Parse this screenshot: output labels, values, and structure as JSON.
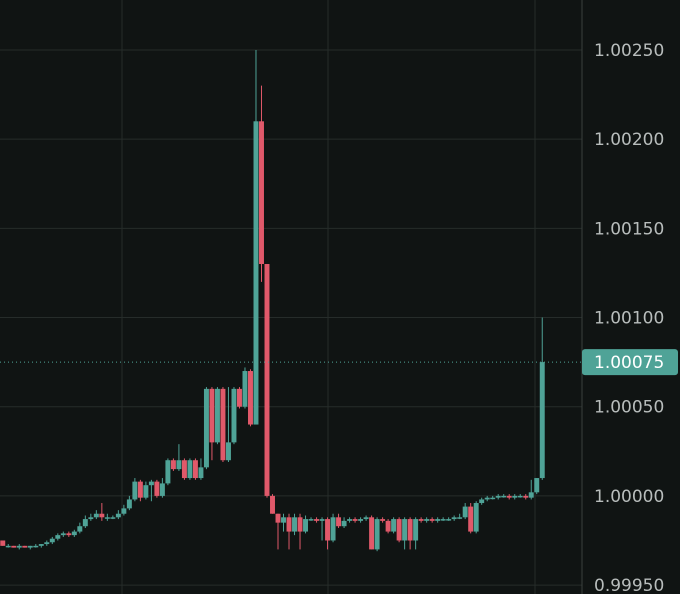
{
  "chart_data": {
    "type": "candlestick",
    "y_axis_position": "right",
    "ylim": [
      0.99945,
      1.00278
    ],
    "y_ticks": [
      "1.00250",
      "1.00200",
      "1.00150",
      "1.00100",
      "1.00050",
      "1.00000",
      "0.99950"
    ],
    "y_tick_values": [
      1.0025,
      1.002,
      1.0015,
      1.001,
      1.0005,
      1.0,
      0.9995
    ],
    "current_price": 1.00075,
    "current_price_label": "1.00075",
    "grid": true,
    "colors": {
      "up": "#4fa397",
      "down": "#e0596a",
      "grid": "#262c2a",
      "axis": "#3a403e",
      "label": "#b8bdbc",
      "badge": "#4fa397",
      "background": "#101413"
    },
    "candles": [
      [
        0.99975,
        0.99972,
        0.99975,
        0.99972
      ],
      [
        0.99972,
        0.99972,
        0.99973,
        0.99971
      ],
      [
        0.99972,
        0.99971,
        0.99972,
        0.99971
      ],
      [
        0.99971,
        0.99972,
        0.99973,
        0.9997
      ],
      [
        0.99972,
        0.99971,
        0.99972,
        0.99971
      ],
      [
        0.99971,
        0.99972,
        0.99972,
        0.9997
      ],
      [
        0.99972,
        0.99972,
        0.99973,
        0.99971
      ],
      [
        0.99972,
        0.99973,
        0.99973,
        0.99971
      ],
      [
        0.99973,
        0.99974,
        0.99975,
        0.99972
      ],
      [
        0.99974,
        0.99976,
        0.99977,
        0.99973
      ],
      [
        0.99976,
        0.99978,
        0.99979,
        0.99975
      ],
      [
        0.99978,
        0.99979,
        0.9998,
        0.99977
      ],
      [
        0.99979,
        0.99978,
        0.9998,
        0.99977
      ],
      [
        0.99978,
        0.9998,
        0.99981,
        0.99977
      ],
      [
        0.9998,
        0.99983,
        0.99985,
        0.99979
      ],
      [
        0.99983,
        0.99987,
        0.99989,
        0.99982
      ],
      [
        0.99987,
        0.99988,
        0.9999,
        0.99986
      ],
      [
        0.99988,
        0.9999,
        0.99992,
        0.99987
      ],
      [
        0.9999,
        0.99988,
        0.99996,
        0.99986
      ],
      [
        0.99988,
        0.99988,
        0.9999,
        0.99986
      ],
      [
        0.99988,
        0.99988,
        0.99989,
        0.99987
      ],
      [
        0.99988,
        0.9999,
        0.99992,
        0.99987
      ],
      [
        0.9999,
        0.99993,
        0.99995,
        0.99989
      ],
      [
        0.99993,
        0.99998,
        1.0,
        0.99992
      ],
      [
        0.99998,
        1.00008,
        1.0001,
        0.99997
      ],
      [
        1.00008,
        0.99999,
        1.00009,
        0.99997
      ],
      [
        0.99999,
        1.00006,
        1.00008,
        0.99998
      ],
      [
        1.00006,
        1.00008,
        1.00009,
        0.99997
      ],
      [
        1.00008,
        1.0,
        1.00009,
        0.99999
      ],
      [
        1.0,
        1.00007,
        1.0001,
        0.99999
      ],
      [
        1.00007,
        1.0002,
        1.00021,
        1.00006
      ],
      [
        1.0002,
        1.00015,
        1.00021,
        1.00014
      ],
      [
        1.00015,
        1.0002,
        1.00029,
        1.00014
      ],
      [
        1.0002,
        1.0001,
        1.00021,
        1.00009
      ],
      [
        1.0001,
        1.0002,
        1.00021,
        1.00009
      ],
      [
        1.0002,
        1.0001,
        1.00021,
        1.00009
      ],
      [
        1.0001,
        1.00016,
        1.00021,
        1.00009
      ],
      [
        1.00016,
        1.0006,
        1.00061,
        1.00015
      ],
      [
        1.0006,
        1.0003,
        1.00061,
        1.0002
      ],
      [
        1.0003,
        1.0006,
        1.00061,
        1.00029
      ],
      [
        1.0006,
        1.0002,
        1.00061,
        1.00019
      ],
      [
        1.0002,
        1.0003,
        1.00061,
        1.00019
      ],
      [
        1.0003,
        1.0006,
        1.00061,
        1.00029
      ],
      [
        1.0006,
        1.0005,
        1.00061,
        1.00049
      ],
      [
        1.0005,
        1.0007,
        1.00072,
        1.00049
      ],
      [
        1.0007,
        1.0004,
        1.00071,
        1.00039
      ],
      [
        1.0004,
        1.0021,
        1.0025,
        1.0004
      ],
      [
        1.0021,
        1.0013,
        1.0023,
        1.0012
      ],
      [
        1.0013,
        1.0,
        1.0008,
        0.99999
      ],
      [
        1.0,
        0.9999,
        1.00001,
        0.9999
      ],
      [
        0.9999,
        0.99985,
        0.9999,
        0.9997
      ],
      [
        0.99985,
        0.99988,
        0.9999,
        0.9998
      ],
      [
        0.99988,
        0.9998,
        0.9999,
        0.9997
      ],
      [
        0.9998,
        0.99988,
        0.9999,
        0.99978
      ],
      [
        0.99988,
        0.9998,
        0.9999,
        0.9997
      ],
      [
        0.9998,
        0.99987,
        0.99989,
        0.99979
      ],
      [
        0.99987,
        0.99987,
        0.99988,
        0.99986
      ],
      [
        0.99987,
        0.99986,
        0.99988,
        0.99985
      ],
      [
        0.99986,
        0.99987,
        0.99988,
        0.99975
      ],
      [
        0.99987,
        0.99975,
        0.99988,
        0.9997
      ],
      [
        0.99975,
        0.99988,
        0.9999,
        0.99974
      ],
      [
        0.99988,
        0.99983,
        0.9999,
        0.99982
      ],
      [
        0.99983,
        0.99986,
        0.99988,
        0.99982
      ],
      [
        0.99986,
        0.99987,
        0.99988,
        0.99985
      ],
      [
        0.99987,
        0.99986,
        0.99988,
        0.99985
      ],
      [
        0.99986,
        0.99987,
        0.99988,
        0.99985
      ],
      [
        0.99987,
        0.99988,
        0.99989,
        0.99986
      ],
      [
        0.99988,
        0.9997,
        0.99989,
        0.9997
      ],
      [
        0.9997,
        0.99987,
        0.99988,
        0.99969
      ],
      [
        0.99987,
        0.99986,
        0.99988,
        0.99985
      ],
      [
        0.99986,
        0.9998,
        0.99987,
        0.99979
      ],
      [
        0.9998,
        0.99987,
        0.99988,
        0.99979
      ],
      [
        0.99987,
        0.99975,
        0.99988,
        0.99974
      ],
      [
        0.99975,
        0.99987,
        0.99988,
        0.9997
      ],
      [
        0.99987,
        0.99975,
        0.99988,
        0.9997
      ],
      [
        0.99975,
        0.99987,
        0.99988,
        0.9997
      ],
      [
        0.99987,
        0.99986,
        0.99988,
        0.99985
      ],
      [
        0.99986,
        0.99987,
        0.99988,
        0.99985
      ],
      [
        0.99987,
        0.99986,
        0.99988,
        0.99985
      ],
      [
        0.99986,
        0.99987,
        0.99988,
        0.99985
      ],
      [
        0.99987,
        0.99987,
        0.99988,
        0.99986
      ],
      [
        0.99987,
        0.99987,
        0.99988,
        0.99986
      ],
      [
        0.99987,
        0.99988,
        0.99989,
        0.99986
      ],
      [
        0.99988,
        0.99988,
        0.9999,
        0.99987
      ],
      [
        0.99988,
        0.99994,
        0.99996,
        0.99987
      ],
      [
        0.99994,
        0.9998,
        0.99996,
        0.99979
      ],
      [
        0.9998,
        0.99996,
        0.99997,
        0.99979
      ],
      [
        0.99996,
        0.99998,
        0.99999,
        0.99995
      ],
      [
        0.99998,
        0.99999,
        1.0,
        0.99997
      ],
      [
        0.99999,
        0.99999,
        1.0,
        0.99998
      ],
      [
        0.99999,
        1.0,
        1.00001,
        0.99998
      ],
      [
        1.0,
        1.0,
        1.00001,
        0.99999
      ],
      [
        1.0,
        0.99999,
        1.00001,
        0.99998
      ],
      [
        0.99999,
        1.0,
        1.00001,
        0.99998
      ],
      [
        1.0,
        1.0,
        1.00001,
        0.99999
      ],
      [
        1.0,
        0.99999,
        1.00001,
        0.99998
      ],
      [
        0.99999,
        1.00002,
        1.00009,
        0.99998
      ],
      [
        1.00002,
        1.0001,
        1.0001,
        1.00001
      ],
      [
        1.0001,
        1.00075,
        1.001,
        1.00009
      ]
    ]
  }
}
